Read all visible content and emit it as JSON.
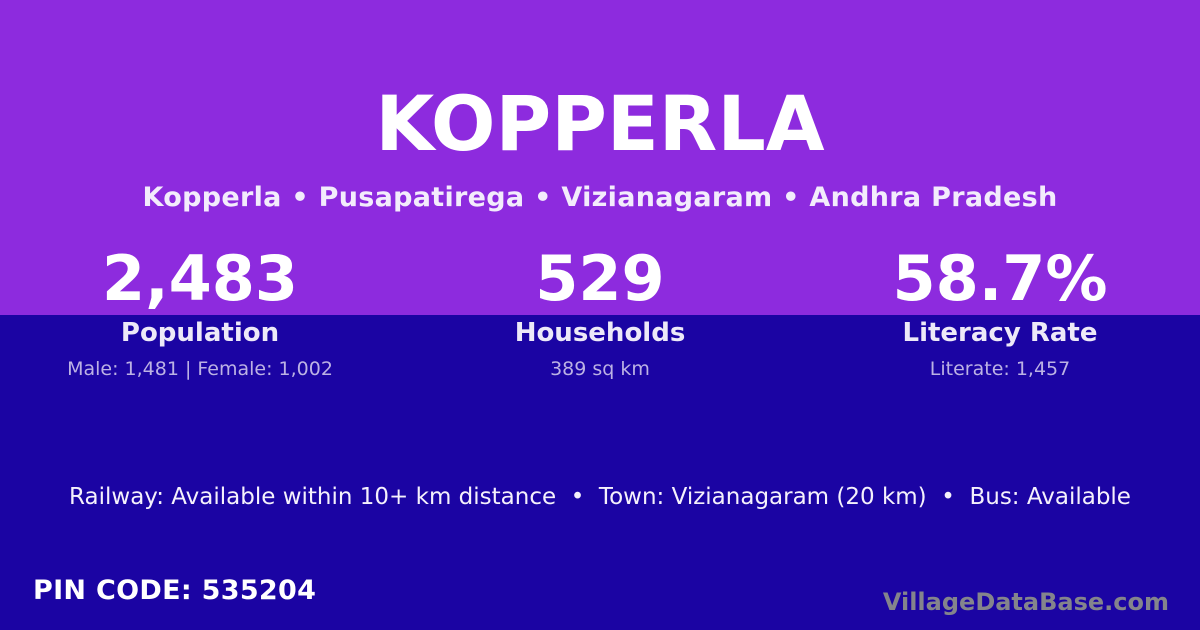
{
  "theme": {
    "top_background": "#8D2BDE",
    "bottom_background": "#1B04A3",
    "title_color": "#FFFFFF",
    "muted_text_color": "#BCB2E4",
    "watermark_color": "#84848C"
  },
  "header": {
    "title": "KOPPERLA",
    "breadcrumb": "Kopperla • Pusapatirega • Vizianagaram • Andhra Pradesh"
  },
  "stats": [
    {
      "value": "2,483",
      "label": "Population",
      "sub": "Male: 1,481 | Female: 1,002"
    },
    {
      "value": "529",
      "label": "Households",
      "sub": "389 sq km"
    },
    {
      "value": "58.7%",
      "label": "Literacy Rate",
      "sub": "Literate: 1,457"
    }
  ],
  "facts_line": "Railway: Available within 10+ km distance  •  Town: Vizianagaram (20 km)  •  Bus: Available",
  "footer": {
    "pin_code": "PIN CODE: 535204",
    "watermark": "VillageDataBase.com"
  }
}
